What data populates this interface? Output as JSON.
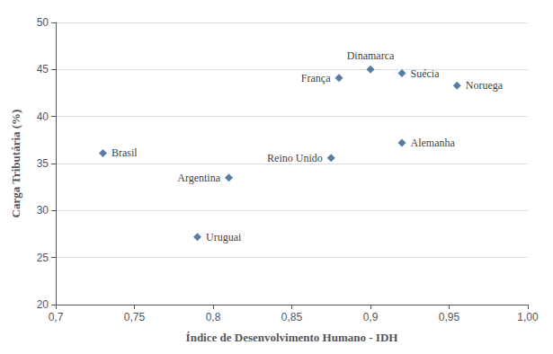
{
  "chart_data": {
    "type": "scatter",
    "x": [
      0.73,
      0.79,
      0.81,
      0.875,
      0.88,
      0.9,
      0.92,
      0.955,
      0.92
    ],
    "values": [
      36.1,
      27.2,
      33.5,
      35.6,
      44.1,
      45.0,
      44.6,
      43.3,
      37.2
    ],
    "annotations": [
      "Brasil",
      "Uruguai",
      "Argentina",
      "Reino Unido",
      "França",
      "Dinamarca",
      "Suécia",
      "Noruega",
      "Alemanha"
    ],
    "marker": "diamond",
    "color": "#2E5D8E",
    "xlabel": "Índice de Desenvolvimento Humano - IDH",
    "ylabel": "Carga Tributária (%)",
    "xlim": [
      0.7,
      1.0
    ],
    "ylim": [
      20,
      50
    ],
    "xticks": [
      {
        "value": 0.7,
        "label": "0,7"
      },
      {
        "value": 0.75,
        "label": "0,75"
      },
      {
        "value": 0.8,
        "label": "0,8"
      },
      {
        "value": 0.85,
        "label": "0,85"
      },
      {
        "value": 0.9,
        "label": "0,9"
      },
      {
        "value": 0.95,
        "label": "0,95"
      },
      {
        "value": 1.0,
        "label": "1,00"
      }
    ],
    "yticks": [
      20,
      25,
      30,
      35,
      40,
      45,
      50
    ],
    "grid": "y"
  }
}
